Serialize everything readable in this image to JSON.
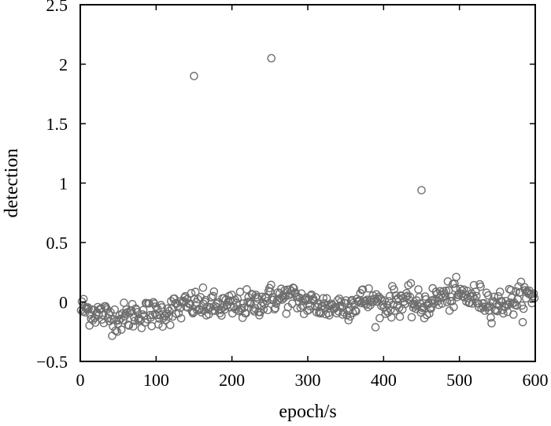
{
  "chart_data": {
    "type": "scatter",
    "title": "",
    "xlabel": "epoch/s",
    "ylabel": "detection",
    "xlim": [
      0,
      600
    ],
    "ylim": [
      -0.5,
      2.5
    ],
    "x_ticks": [
      0,
      100,
      200,
      300,
      400,
      500,
      600
    ],
    "y_ticks": [
      -0.5,
      0,
      0.5,
      1,
      1.5,
      2,
      2.5
    ],
    "x_tick_labels": [
      "0",
      "100",
      "200",
      "300",
      "400",
      "500",
      "600"
    ],
    "y_tick_labels": [
      "−0.5",
      "0",
      "0.5",
      "1",
      "1.5",
      "2",
      "2.5"
    ],
    "grid": false,
    "legend": "none",
    "marker": "hollow-circle",
    "colors": {
      "marker": "#6e6e6e",
      "axis": "#000000"
    },
    "outliers": [
      {
        "x": 150,
        "y": 1.9
      },
      {
        "x": 252,
        "y": 2.05
      },
      {
        "x": 450,
        "y": 0.94
      }
    ],
    "noise_profile": {
      "x": [
        0,
        25,
        50,
        75,
        100,
        125,
        150,
        175,
        200,
        225,
        250,
        275,
        300,
        325,
        350,
        375,
        400,
        425,
        450,
        475,
        500,
        525,
        550,
        575,
        600
      ],
      "y": [
        -0.05,
        -0.1,
        -0.14,
        -0.1,
        -0.1,
        -0.06,
        -0.02,
        -0.04,
        -0.04,
        -0.02,
        0.03,
        0.04,
        -0.01,
        -0.04,
        -0.03,
        0.02,
        -0.02,
        0.02,
        -0.04,
        0.04,
        0.06,
        0.03,
        -0.02,
        0.02,
        0.06
      ]
    },
    "noise_count": 540,
    "noise_spread": 0.06
  }
}
